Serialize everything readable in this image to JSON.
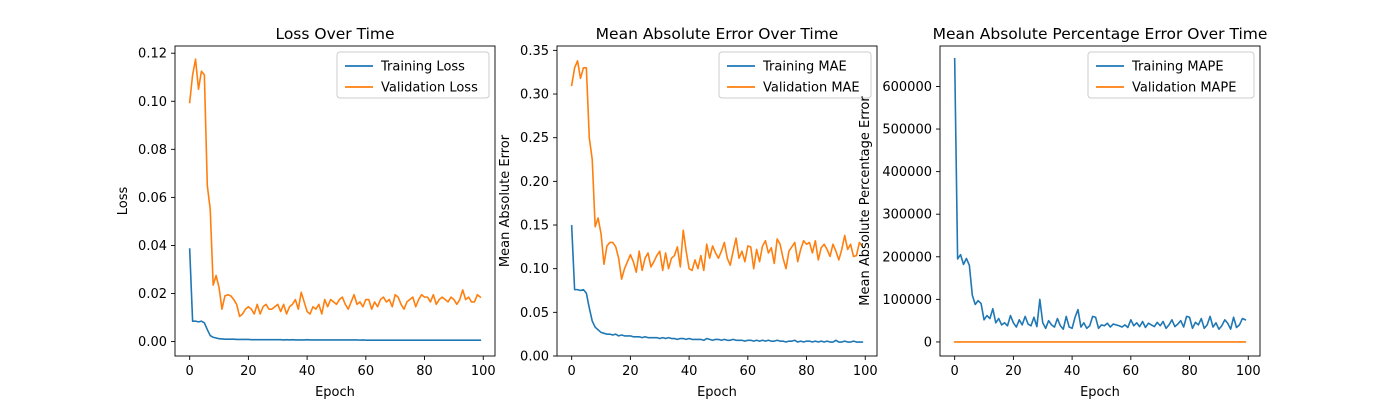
{
  "chart_data": [
    {
      "type": "line",
      "title": "Loss Over Time",
      "xlabel": "Epoch",
      "ylabel": "Loss",
      "xlim": [
        -5,
        104
      ],
      "ylim": [
        -0.006,
        0.123
      ],
      "xticks": [
        0,
        20,
        40,
        60,
        80,
        100
      ],
      "xtick_labels": [
        "0",
        "20",
        "40",
        "60",
        "80",
        "100"
      ],
      "yticks": [
        0,
        0.02,
        0.04,
        0.06,
        0.08,
        0.1,
        0.12
      ],
      "ytick_labels": [
        "0.00",
        "0.02",
        "0.04",
        "0.06",
        "0.08",
        "0.10",
        "0.12"
      ],
      "grid": false,
      "legend_position": "top-right",
      "series": [
        {
          "name": "Training Loss",
          "color": "#1f77b4",
          "values": [
            0.0385,
            0.0085,
            0.0085,
            0.0082,
            0.0085,
            0.0078,
            0.005,
            0.0025,
            0.0018,
            0.0015,
            0.0012,
            0.0011,
            0.001,
            0.001,
            0.001,
            0.001,
            0.0009,
            0.0009,
            0.0009,
            0.0009,
            0.0009,
            0.0008,
            0.0008,
            0.0008,
            0.0008,
            0.0008,
            0.0008,
            0.0008,
            0.0008,
            0.0008,
            0.0008,
            0.0008,
            0.0007,
            0.0008,
            0.0007,
            0.0008,
            0.0007,
            0.0007,
            0.0007,
            0.0007,
            0.0008,
            0.0007,
            0.0007,
            0.0007,
            0.0007,
            0.0007,
            0.0007,
            0.0007,
            0.0007,
            0.0007,
            0.0007,
            0.0007,
            0.0007,
            0.0007,
            0.0007,
            0.0007,
            0.0007,
            0.0007,
            0.0006,
            0.0007,
            0.0006,
            0.0006,
            0.0006,
            0.0006,
            0.0006,
            0.0006,
            0.0006,
            0.0006,
            0.0006,
            0.0006,
            0.0006,
            0.0006,
            0.0006,
            0.0006,
            0.0006,
            0.0006,
            0.0006,
            0.0006,
            0.0006,
            0.0006,
            0.0006,
            0.0006,
            0.0006,
            0.0006,
            0.0006,
            0.0006,
            0.0006,
            0.0006,
            0.0006,
            0.0006,
            0.0006,
            0.0006,
            0.0006,
            0.0006,
            0.0006,
            0.0006,
            0.0006,
            0.0006,
            0.0006,
            0.0006
          ]
        },
        {
          "name": "Validation Loss",
          "color": "#ff7f0e",
          "values": [
            0.0995,
            0.111,
            0.1175,
            0.105,
            0.1125,
            0.111,
            0.065,
            0.055,
            0.0235,
            0.0275,
            0.0225,
            0.0135,
            0.019,
            0.0195,
            0.019,
            0.0175,
            0.0155,
            0.0105,
            0.0115,
            0.0135,
            0.0145,
            0.0135,
            0.0115,
            0.0155,
            0.0115,
            0.0145,
            0.0155,
            0.0135,
            0.0135,
            0.0145,
            0.0155,
            0.0125,
            0.0155,
            0.0115,
            0.0145,
            0.0155,
            0.0175,
            0.0135,
            0.0205,
            0.0165,
            0.0125,
            0.0115,
            0.0145,
            0.0135,
            0.0155,
            0.0115,
            0.0175,
            0.0145,
            0.0175,
            0.0165,
            0.0155,
            0.0175,
            0.0185,
            0.0155,
            0.0135,
            0.0165,
            0.0195,
            0.0155,
            0.0165,
            0.0145,
            0.0175,
            0.0175,
            0.0135,
            0.0165,
            0.0145,
            0.0175,
            0.0185,
            0.0165,
            0.0175,
            0.0145,
            0.0195,
            0.0185,
            0.0155,
            0.0135,
            0.0165,
            0.0175,
            0.0185,
            0.0145,
            0.0175,
            0.0195,
            0.0185,
            0.0185,
            0.0165,
            0.0195,
            0.0155,
            0.0175,
            0.0185,
            0.0175,
            0.0165,
            0.0185,
            0.0175,
            0.0155,
            0.0175,
            0.0215,
            0.0175,
            0.0185,
            0.0165,
            0.0165,
            0.0195,
            0.0185
          ]
        }
      ]
    },
    {
      "type": "line",
      "title": "Mean Absolute Error Over Time",
      "xlabel": "Epoch",
      "ylabel": "Mean Absolute Error",
      "xlim": [
        -5,
        104
      ],
      "ylim": [
        0,
        0.355
      ],
      "xticks": [
        0,
        20,
        40,
        60,
        80,
        100
      ],
      "xtick_labels": [
        "0",
        "20",
        "40",
        "60",
        "80",
        "100"
      ],
      "yticks": [
        0,
        0.05,
        0.1,
        0.15,
        0.2,
        0.25,
        0.3,
        0.35
      ],
      "ytick_labels": [
        "0.00",
        "0.05",
        "0.10",
        "0.15",
        "0.20",
        "0.25",
        "0.30",
        "0.35"
      ],
      "grid": false,
      "legend_position": "top-right",
      "series": [
        {
          "name": "Training MAE",
          "color": "#1f77b4",
          "values": [
            0.149,
            0.076,
            0.076,
            0.075,
            0.076,
            0.072,
            0.055,
            0.04,
            0.033,
            0.03,
            0.027,
            0.026,
            0.025,
            0.025,
            0.024,
            0.025,
            0.023,
            0.024,
            0.023,
            0.023,
            0.023,
            0.022,
            0.022,
            0.022,
            0.021,
            0.022,
            0.021,
            0.021,
            0.021,
            0.021,
            0.02,
            0.021,
            0.02,
            0.021,
            0.02,
            0.02,
            0.019,
            0.02,
            0.02,
            0.019,
            0.02,
            0.019,
            0.019,
            0.019,
            0.019,
            0.018,
            0.02,
            0.019,
            0.018,
            0.019,
            0.019,
            0.018,
            0.019,
            0.018,
            0.018,
            0.019,
            0.018,
            0.018,
            0.018,
            0.017,
            0.018,
            0.018,
            0.017,
            0.018,
            0.017,
            0.018,
            0.017,
            0.018,
            0.017,
            0.017,
            0.018,
            0.017,
            0.017,
            0.016,
            0.017,
            0.017,
            0.018,
            0.016,
            0.017,
            0.016,
            0.017,
            0.017,
            0.016,
            0.017,
            0.016,
            0.017,
            0.016,
            0.017,
            0.016,
            0.016,
            0.018,
            0.016,
            0.016,
            0.017,
            0.016,
            0.016,
            0.017,
            0.016,
            0.016,
            0.016
          ]
        },
        {
          "name": "Validation MAE",
          "color": "#ff7f0e",
          "values": [
            0.31,
            0.33,
            0.338,
            0.318,
            0.33,
            0.33,
            0.25,
            0.225,
            0.148,
            0.158,
            0.14,
            0.105,
            0.126,
            0.13,
            0.13,
            0.125,
            0.112,
            0.088,
            0.1,
            0.108,
            0.116,
            0.108,
            0.096,
            0.12,
            0.098,
            0.112,
            0.118,
            0.102,
            0.108,
            0.115,
            0.12,
            0.098,
            0.118,
            0.1,
            0.112,
            0.115,
            0.125,
            0.102,
            0.144,
            0.12,
            0.1,
            0.098,
            0.11,
            0.1,
            0.115,
            0.098,
            0.128,
            0.112,
            0.126,
            0.118,
            0.112,
            0.12,
            0.13,
            0.112,
            0.104,
            0.12,
            0.135,
            0.112,
            0.12,
            0.108,
            0.126,
            0.125,
            0.1,
            0.122,
            0.108,
            0.126,
            0.132,
            0.118,
            0.124,
            0.106,
            0.134,
            0.128,
            0.112,
            0.1,
            0.12,
            0.125,
            0.13,
            0.108,
            0.122,
            0.132,
            0.128,
            0.13,
            0.118,
            0.132,
            0.11,
            0.124,
            0.128,
            0.122,
            0.114,
            0.128,
            0.12,
            0.11,
            0.122,
            0.138,
            0.122,
            0.128,
            0.114,
            0.115,
            0.13,
            0.126
          ]
        }
      ]
    },
    {
      "type": "line",
      "title": "Mean Absolute Percentage Error Over Time",
      "xlabel": "Epoch",
      "ylabel": "Mean Absolute Percentage Error",
      "xlim": [
        -5,
        104
      ],
      "ylim": [
        -33000,
        695000
      ],
      "xticks": [
        0,
        20,
        40,
        60,
        80,
        100
      ],
      "xtick_labels": [
        "0",
        "20",
        "40",
        "60",
        "80",
        "100"
      ],
      "yticks": [
        0,
        100000,
        200000,
        300000,
        400000,
        500000,
        600000
      ],
      "ytick_labels": [
        "0",
        "100000",
        "200000",
        "300000",
        "400000",
        "500000",
        "600000"
      ],
      "grid": false,
      "legend_position": "top-right",
      "series": [
        {
          "name": "Training MAPE",
          "color": "#1f77b4",
          "values": [
            665000,
            195000,
            205000,
            182000,
            196000,
            180000,
            110000,
            88000,
            97000,
            90000,
            52000,
            62000,
            55000,
            78000,
            45000,
            55000,
            40000,
            45000,
            38000,
            62000,
            45000,
            35000,
            52000,
            40000,
            60000,
            42000,
            38000,
            58000,
            36000,
            100000,
            45000,
            32000,
            50000,
            40000,
            35000,
            55000,
            38000,
            30000,
            60000,
            35000,
            32000,
            58000,
            76000,
            35000,
            45000,
            32000,
            38000,
            60000,
            58000,
            32000,
            40000,
            38000,
            44000,
            35000,
            42000,
            40000,
            38000,
            35000,
            40000,
            34000,
            52000,
            38000,
            45000,
            36000,
            48000,
            34000,
            44000,
            40000,
            36000,
            46000,
            38000,
            48000,
            32000,
            40000,
            52000,
            36000,
            42000,
            50000,
            35000,
            60000,
            58000,
            32000,
            46000,
            40000,
            55000,
            32000,
            40000,
            60000,
            35000,
            45000,
            30000,
            38000,
            52000,
            44000,
            30000,
            58000,
            34000,
            40000,
            55000,
            52000
          ]
        },
        {
          "name": "Validation MAPE",
          "color": "#ff7f0e",
          "values": [
            0,
            0,
            0,
            0,
            0,
            0,
            0,
            0,
            0,
            0,
            0,
            0,
            0,
            0,
            0,
            0,
            0,
            0,
            0,
            0,
            0,
            0,
            0,
            0,
            0,
            0,
            0,
            0,
            0,
            0,
            0,
            0,
            0,
            0,
            0,
            0,
            0,
            0,
            0,
            0,
            0,
            0,
            0,
            0,
            0,
            0,
            0,
            0,
            0,
            0,
            0,
            0,
            0,
            0,
            0,
            0,
            0,
            0,
            0,
            0,
            0,
            0,
            0,
            0,
            0,
            0,
            0,
            0,
            0,
            0,
            0,
            0,
            0,
            0,
            0,
            0,
            0,
            0,
            0,
            0,
            0,
            0,
            0,
            0,
            0,
            0,
            0,
            0,
            0,
            0,
            0,
            0,
            0,
            0,
            0,
            0,
            0,
            0,
            0,
            0
          ]
        }
      ]
    }
  ]
}
